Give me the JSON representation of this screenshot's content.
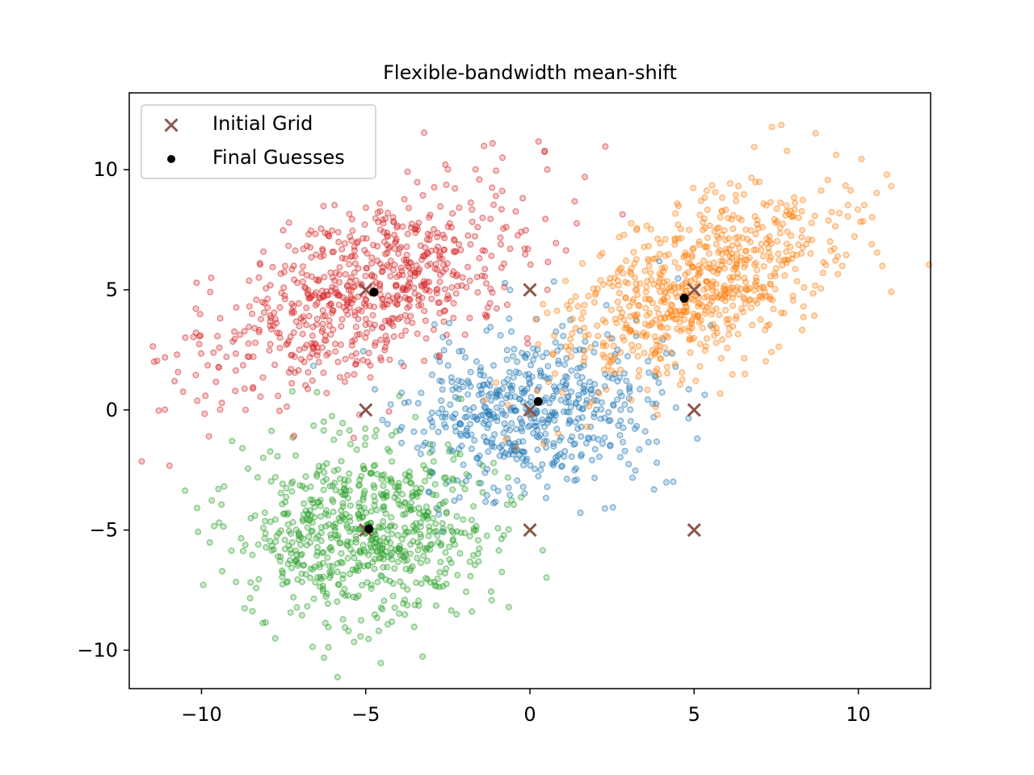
{
  "chart_data": {
    "type": "scatter",
    "title": "Flexible-bandwidth mean-shift",
    "xlabel": "",
    "ylabel": "",
    "xlim": [
      -12.2,
      12.2
    ],
    "ylim": [
      -11.6,
      13.2
    ],
    "xticks": [
      -10,
      -5,
      0,
      5,
      10
    ],
    "yticks": [
      -10,
      -5,
      0,
      5,
      10
    ],
    "xtick_labels": [
      "−10",
      "−5",
      "0",
      "5",
      "10"
    ],
    "ytick_labels": [
      "−10",
      "−5",
      "0",
      "5",
      "10"
    ],
    "grid": false,
    "legend_position": "top-left",
    "clusters": [
      {
        "color": "#1f77b4",
        "mean": [
          0,
          0
        ],
        "sx": 1.9,
        "sy": 1.7,
        "rho": 0.1,
        "n": 560,
        "seed": 11
      },
      {
        "color": "#ff7f0e",
        "mean": [
          5,
          5
        ],
        "sx": 2.1,
        "sy": 2.0,
        "rho": 0.55,
        "n": 720,
        "seed": 23
      },
      {
        "color": "#2ca02c",
        "mean": [
          -5,
          -5
        ],
        "sx": 1.9,
        "sy": 1.9,
        "rho": 0.05,
        "n": 720,
        "seed": 37
      },
      {
        "color": "#d62728",
        "mean": [
          -5,
          5
        ],
        "sx": 2.4,
        "sy": 2.1,
        "rho": 0.55,
        "n": 720,
        "seed": 53
      }
    ],
    "series": [
      {
        "name": "Initial Grid",
        "marker": "x",
        "color": "#8c564b",
        "points": [
          [
            -5,
            5
          ],
          [
            0,
            5
          ],
          [
            5,
            5
          ],
          [
            -5,
            0
          ],
          [
            0,
            0
          ],
          [
            5,
            0
          ],
          [
            -5,
            -5
          ],
          [
            0,
            -5
          ],
          [
            5,
            -5
          ]
        ]
      },
      {
        "name": "Final Guesses",
        "marker": "dot",
        "color": "#000000",
        "points": [
          [
            -4.75,
            4.9
          ],
          [
            4.7,
            4.65
          ],
          [
            0.25,
            0.35
          ],
          [
            -4.9,
            -4.95
          ]
        ]
      }
    ]
  }
}
